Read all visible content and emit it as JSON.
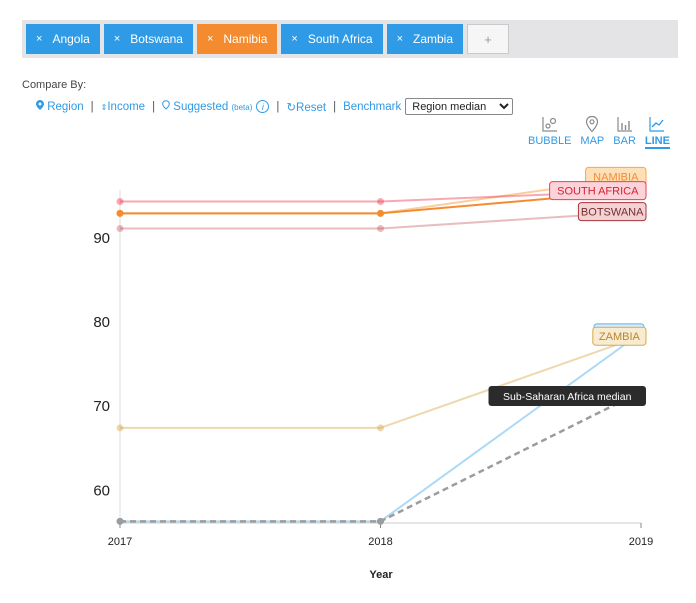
{
  "filters": {
    "tags": [
      {
        "label": "Angola",
        "active": false
      },
      {
        "label": "Botswana",
        "active": false
      },
      {
        "label": "Namibia",
        "active": true
      },
      {
        "label": "South Africa",
        "active": false
      },
      {
        "label": "Zambia",
        "active": false
      }
    ],
    "add_label": "+"
  },
  "compare": {
    "title": "Compare By:",
    "region": "Region",
    "income": "Income",
    "suggested": "Suggested",
    "beta": "(beta)",
    "info": "i",
    "reset": "Reset",
    "benchmark": "Benchmark",
    "benchmark_value": "Region median"
  },
  "chart_types": [
    {
      "label": "BUBBLE",
      "icon": "bubble-chart-icon",
      "selected": false
    },
    {
      "label": "MAP",
      "icon": "map-pin-icon",
      "selected": false
    },
    {
      "label": "BAR",
      "icon": "bar-chart-icon",
      "selected": false
    },
    {
      "label": "LINE",
      "icon": "line-chart-icon",
      "selected": true
    }
  ],
  "chart_data": {
    "type": "line",
    "xlabel": "Year",
    "ylabel": "",
    "x": [
      2017,
      2018,
      2019
    ],
    "yticks": [
      60,
      70,
      80,
      90
    ],
    "ylim": [
      56,
      97
    ],
    "series": [
      {
        "name": "NAMIBIA",
        "values": [
          92.8,
          92.8,
          97.2
        ],
        "color": "#f9a54a"
      },
      {
        "name": "SOUTH AFRICA",
        "values": [
          94.2,
          94.2,
          95.5
        ],
        "color": "#ef3d55"
      },
      {
        "name": "",
        "values": [
          92.8,
          92.8,
          95.5
        ],
        "color": "#f48c2f"
      },
      {
        "name": "BOTSWANA",
        "values": [
          91.0,
          91.0,
          93.0
        ],
        "color": "#b9434b"
      },
      {
        "name": "",
        "values": [
          56.2,
          56.2,
          78.6
        ],
        "color": "#59b3ee"
      },
      {
        "name": "ZAMBIA",
        "values": [
          67.3,
          67.3,
          78.2
        ],
        "color": "#d7a84e"
      },
      {
        "name": "Sub-Saharan Africa median",
        "values": [
          56.2,
          56.2,
          71.6
        ],
        "color": "#9c9c9c",
        "dashed": true
      }
    ]
  }
}
